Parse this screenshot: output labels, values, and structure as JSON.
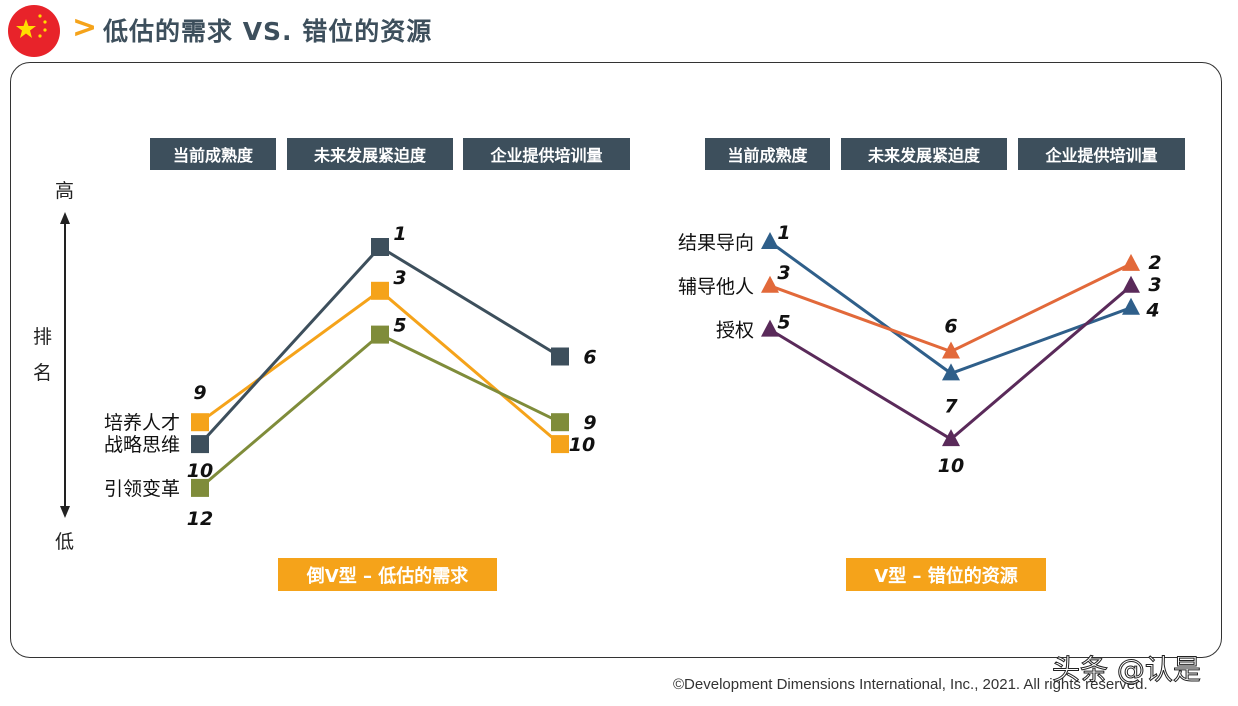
{
  "header": {
    "title": "低估的需求 VS. 错位的资源",
    "flag_icon": "china-flag-icon",
    "chevron_icon": "chevron-right-icon",
    "accent": "#f5a31a"
  },
  "axis": {
    "high": "高",
    "low": "低",
    "label_1": "排",
    "label_2": "名"
  },
  "chart_data": [
    {
      "type": "line",
      "title": "倒V型 – 低估的需求",
      "categories": [
        "当前成熟度",
        "未来发展紧迫度",
        "企业提供培训量"
      ],
      "ylabel": "排名",
      "y_inverted": true,
      "marker": "square",
      "series": [
        {
          "name": "培养人才",
          "values": [
            9,
            3,
            10
          ],
          "color": "#f5a31a"
        },
        {
          "name": "战略思维",
          "values": [
            10,
            1,
            6
          ],
          "color": "#3d4f5c"
        },
        {
          "name": "引领变革",
          "values": [
            12,
            5,
            9
          ],
          "color": "#7f8c3a"
        }
      ]
    },
    {
      "type": "line",
      "title": "V型 – 错位的资源",
      "categories": [
        "当前成熟度",
        "未来发展紧迫度",
        "企业提供培训量"
      ],
      "ylabel": "排名",
      "y_inverted": true,
      "marker": "triangle",
      "series": [
        {
          "name": "结果导向",
          "values": [
            1,
            7,
            4
          ],
          "color": "#2f5f8a"
        },
        {
          "name": "辅导他人",
          "values": [
            3,
            6,
            2
          ],
          "color": "#e2693a"
        },
        {
          "name": "授权",
          "values": [
            5,
            10,
            3
          ],
          "color": "#5a2a5a"
        }
      ]
    }
  ],
  "footer": {
    "copyright": "©Development Dimensions International, Inc., 2021. All rights reserved.",
    "watermark": "头条 @认是"
  }
}
